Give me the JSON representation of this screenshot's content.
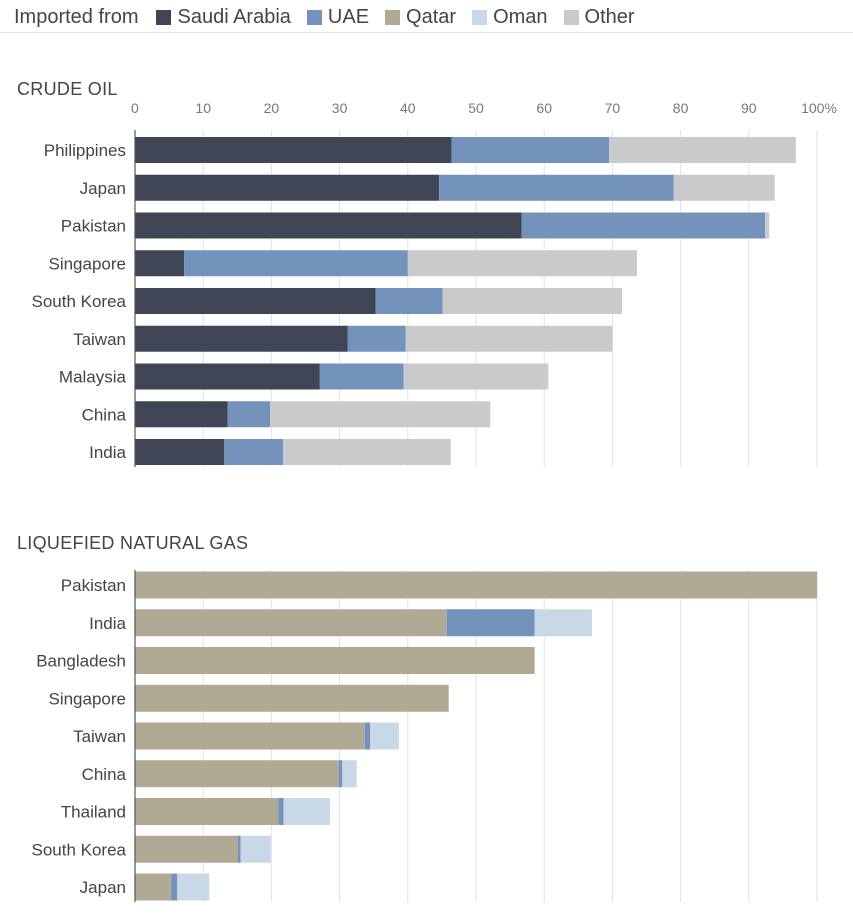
{
  "legend": {
    "title": "Imported from",
    "entries": [
      {
        "name": "Saudi Arabia",
        "color": "#3f4554"
      },
      {
        "name": "UAE",
        "color": "#7393bd"
      },
      {
        "name": "Qatar",
        "color": "#b0aa95"
      },
      {
        "name": "Oman",
        "color": "#c8d8e7"
      },
      {
        "name": "Other",
        "color": "#c8cacc"
      }
    ]
  },
  "chart_data": [
    {
      "type": "bar",
      "orientation": "horizontal",
      "stacked": true,
      "title": "CRUDE OIL",
      "tick_values": [
        0,
        10,
        20,
        30,
        40,
        50,
        60,
        70,
        80,
        90,
        100
      ],
      "tick_labels": [
        "0",
        "10",
        "20",
        "30",
        "40",
        "50",
        "60",
        "70",
        "80",
        "90",
        "100%"
      ],
      "xlim": [
        0,
        100
      ],
      "grid": true,
      "legend_position": "top-left",
      "categories": [
        "Philippines",
        "Japan",
        "Pakistan",
        "Singapore",
        "South Korea",
        "Taiwan",
        "Malaysia",
        "China",
        "India"
      ],
      "series": [
        {
          "name": "Saudi Arabia",
          "color": "#3f4554",
          "values": [
            46.4,
            44.6,
            56.7,
            7.2,
            35.3,
            31.2,
            27.1,
            13.6,
            13.1
          ]
        },
        {
          "name": "UAE",
          "color": "#7393bd",
          "values": [
            23.1,
            34.4,
            35.7,
            32.8,
            9.8,
            8.5,
            12.3,
            6.2,
            8.6
          ]
        },
        {
          "name": "Other",
          "color": "#c8cacc",
          "values": [
            27.4,
            14.8,
            0.6,
            33.6,
            26.3,
            30.3,
            21.2,
            32.3,
            24.6
          ]
        }
      ]
    },
    {
      "type": "bar",
      "orientation": "horizontal",
      "stacked": true,
      "title": "LIQUEFIED NATURAL GAS",
      "tick_values": [
        0,
        10,
        20,
        30,
        40,
        50,
        60,
        70,
        80,
        90,
        100
      ],
      "xlim": [
        0,
        100
      ],
      "grid": true,
      "categories": [
        "Pakistan",
        "India",
        "Bangladesh",
        "Singapore",
        "Taiwan",
        "China",
        "Thailand",
        "South Korea",
        "Japan"
      ],
      "series": [
        {
          "name": "Qatar",
          "color": "#b0aa95",
          "values": [
            100,
            45.7,
            58.6,
            46.0,
            33.7,
            29.9,
            21.0,
            15.1,
            5.3
          ]
        },
        {
          "name": "UAE",
          "color": "#7393bd",
          "values": [
            0,
            12.9,
            0,
            0,
            0.8,
            0.5,
            0.8,
            0.4,
            0.9
          ]
        },
        {
          "name": "Oman",
          "color": "#c8d8e7",
          "values": [
            0,
            8.4,
            0,
            0,
            4.2,
            2.1,
            6.8,
            4.4,
            4.7
          ]
        }
      ]
    }
  ]
}
